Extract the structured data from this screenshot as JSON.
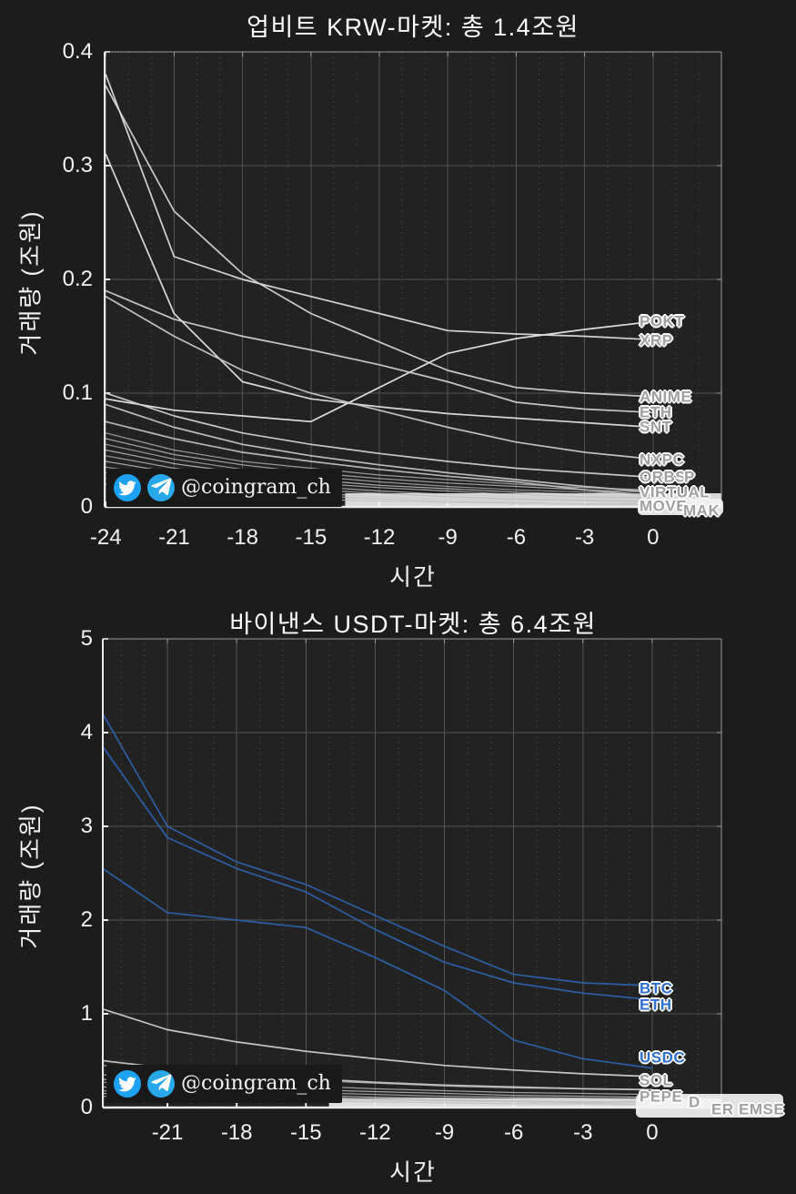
{
  "colors": {
    "background": "#1c1c1c",
    "plot_bg": "#222222",
    "grid": "#545454",
    "grid_minor": "#4f4f4f",
    "spine_bright": "#ebebeb",
    "spine_dim": "#9a9a9a",
    "tick_text": "#f2f2f2",
    "title_text": "#ffffff",
    "blue_line": "#2b63ae",
    "blue_label": "#2e6fd0",
    "grey_label": "#a0a0a0",
    "band": "#f3f3f3",
    "watermark_bg": "#191919",
    "twitter_blue": "#1DA1F2",
    "telegram_blue": "#28A8E8"
  },
  "watermark": {
    "handle": "@coingram_ch"
  },
  "chart_data": [
    {
      "type": "line",
      "title": "업비트 KRW-마켓: 총 1.4조원",
      "xlabel": "시간",
      "ylabel": "거래량 (조원)",
      "xlim": [
        -24.05,
        3
      ],
      "ylim": [
        0,
        0.4
      ],
      "xticks": [
        -24,
        -21,
        -18,
        -15,
        -12,
        -9,
        -6,
        -3,
        0
      ],
      "yticks": [
        0,
        0.1,
        0.2,
        0.3,
        0.4
      ],
      "grid": true,
      "x": [
        -24,
        -21,
        -18,
        -15,
        -12,
        -9,
        -6,
        -3,
        0
      ],
      "series": [
        {
          "name": "POKT",
          "color": "#e8e8e8",
          "values": [
            0.095,
            0.085,
            0.08,
            0.075,
            0.105,
            0.135,
            0.148,
            0.156,
            0.163
          ]
        },
        {
          "name": "XRP",
          "color": "#dddddd",
          "values": [
            0.38,
            0.22,
            0.2,
            0.185,
            0.17,
            0.155,
            0.152,
            0.15,
            0.147
          ]
        },
        {
          "name": "ANIME",
          "color": "#d5d5d5",
          "values": [
            0.37,
            0.26,
            0.205,
            0.17,
            0.145,
            0.12,
            0.105,
            0.1,
            0.097
          ]
        },
        {
          "name": "ETH",
          "color": "#cfcfcf",
          "values": [
            0.19,
            0.165,
            0.15,
            0.138,
            0.125,
            0.11,
            0.092,
            0.086,
            0.083
          ]
        },
        {
          "name": "SNT",
          "color": "#e2e2e2",
          "values": [
            0.31,
            0.17,
            0.11,
            0.095,
            0.088,
            0.082,
            0.078,
            0.074,
            0.07
          ]
        },
        {
          "name": "NXPC",
          "color": "#c8c8c8",
          "values": [
            0.185,
            0.15,
            0.12,
            0.1,
            0.085,
            0.07,
            0.057,
            0.048,
            0.042
          ]
        },
        {
          "name": "ORBS",
          "color": "#d0d0d0",
          "values": [
            0.1,
            0.08,
            0.065,
            0.055,
            0.047,
            0.04,
            0.034,
            0.03,
            0.026
          ]
        },
        {
          "name": "VIRTUAL",
          "color": "#c4c4c4",
          "values": [
            0.09,
            0.07,
            0.055,
            0.045,
            0.037,
            0.03,
            0.024,
            0.018,
            0.013
          ]
        },
        {
          "name": "MOVE",
          "color": "#bdbdbd",
          "values": [
            0.075,
            0.06,
            0.048,
            0.04,
            0.033,
            0.027,
            0.022,
            0.015,
            0.01
          ]
        }
      ],
      "extra_series": [
        {
          "color": "#b8b8b8",
          "values": [
            0.065,
            0.05,
            0.04,
            0.034,
            0.028,
            0.024,
            0.02,
            0.017,
            0.015
          ]
        },
        {
          "color": "#c2c2c2",
          "values": [
            0.06,
            0.046,
            0.037,
            0.03,
            0.025,
            0.021,
            0.018,
            0.015,
            0.013
          ]
        },
        {
          "color": "#b2b2b2",
          "values": [
            0.055,
            0.042,
            0.033,
            0.027,
            0.022,
            0.018,
            0.015,
            0.013,
            0.011
          ]
        },
        {
          "color": "#cccccc",
          "values": [
            0.05,
            0.038,
            0.03,
            0.024,
            0.019,
            0.016,
            0.013,
            0.011,
            0.009
          ]
        },
        {
          "color": "#bbbbbb",
          "values": [
            0.045,
            0.034,
            0.026,
            0.021,
            0.017,
            0.014,
            0.011,
            0.009,
            0.008
          ]
        },
        {
          "color": "#c6c6c6",
          "values": [
            0.04,
            0.03,
            0.023,
            0.018,
            0.014,
            0.011,
            0.009,
            0.008,
            0.007
          ]
        },
        {
          "color": "#b5b5b5",
          "values": [
            0.035,
            0.026,
            0.02,
            0.015,
            0.012,
            0.009,
            0.007,
            0.006,
            0.005
          ]
        },
        {
          "color": "#c9c9c9",
          "values": [
            0.03,
            0.022,
            0.016,
            0.012,
            0.009,
            0.007,
            0.006,
            0.005,
            0.004
          ]
        },
        {
          "color": "#bfbfbf",
          "values": [
            0.025,
            0.018,
            0.013,
            0.01,
            0.007,
            0.005,
            0.004,
            0.003,
            0.003
          ]
        },
        {
          "color": "#c4c4c4",
          "values": [
            0.02,
            0.014,
            0.01,
            0.007,
            0.005,
            0.004,
            0.003,
            0.002,
            0.002
          ]
        }
      ],
      "label_fragments": [
        "P",
        "MAK"
      ]
    },
    {
      "type": "line",
      "title": "바이낸스 USDT-마켓: 총 6.4조원",
      "xlabel": "시간",
      "ylabel": "거래량 (조원)",
      "xlim": [
        -23.8,
        3
      ],
      "ylim": [
        0,
        5
      ],
      "xticks": [
        -21,
        -18,
        -15,
        -12,
        -9,
        -6,
        -3,
        0
      ],
      "yticks": [
        0,
        1,
        2,
        3,
        4,
        5
      ],
      "grid": true,
      "x": [
        -23.8,
        -21,
        -18,
        -15,
        -12,
        -9,
        -6,
        -3,
        0
      ],
      "series": [
        {
          "name": "BTC",
          "color": "#2b63ae",
          "label_style": "blue",
          "values": [
            4.2,
            3.0,
            2.62,
            2.38,
            2.05,
            1.72,
            1.42,
            1.33,
            1.3
          ]
        },
        {
          "name": "ETH",
          "color": "#2b63ae",
          "label_style": "blue",
          "values": [
            3.85,
            2.88,
            2.55,
            2.3,
            1.9,
            1.55,
            1.33,
            1.22,
            1.15
          ]
        },
        {
          "name": "USDC",
          "color": "#2b63ae",
          "label_style": "blue",
          "values": [
            2.55,
            2.08,
            2.0,
            1.92,
            1.6,
            1.25,
            0.72,
            0.52,
            0.42
          ]
        },
        {
          "name": "SOL",
          "color": "#cfcfcf",
          "label_style": "grey",
          "values": [
            1.05,
            0.83,
            0.7,
            0.6,
            0.52,
            0.45,
            0.4,
            0.36,
            0.33
          ]
        },
        {
          "name": "PEPE",
          "color": "#c6c6c6",
          "label_style": "grey",
          "values": [
            0.5,
            0.42,
            0.36,
            0.31,
            0.27,
            0.24,
            0.22,
            0.2,
            0.19
          ]
        }
      ],
      "extra_series": [
        {
          "color": "#c9c9c9",
          "values": [
            0.45,
            0.38,
            0.33,
            0.29,
            0.26,
            0.23,
            0.21,
            0.2,
            0.19
          ]
        },
        {
          "color": "#bdbdbd",
          "values": [
            0.35,
            0.3,
            0.26,
            0.23,
            0.2,
            0.18,
            0.16,
            0.15,
            0.14
          ]
        },
        {
          "color": "#c4c4c4",
          "values": [
            0.3,
            0.26,
            0.22,
            0.19,
            0.17,
            0.15,
            0.13,
            0.12,
            0.11
          ]
        },
        {
          "color": "#b8b8b8",
          "values": [
            0.27,
            0.23,
            0.19,
            0.16,
            0.14,
            0.12,
            0.11,
            0.1,
            0.09
          ]
        },
        {
          "color": "#cfcfcf",
          "values": [
            0.22,
            0.19,
            0.16,
            0.13,
            0.11,
            0.1,
            0.09,
            0.08,
            0.07
          ]
        },
        {
          "color": "#b2b2b2",
          "values": [
            0.18,
            0.15,
            0.13,
            0.11,
            0.09,
            0.08,
            0.07,
            0.06,
            0.06
          ]
        },
        {
          "color": "#c2c2c2",
          "values": [
            0.15,
            0.12,
            0.1,
            0.09,
            0.08,
            0.07,
            0.06,
            0.05,
            0.05
          ]
        },
        {
          "color": "#bbbbbb",
          "values": [
            0.12,
            0.1,
            0.08,
            0.07,
            0.06,
            0.05,
            0.04,
            0.04,
            0.03
          ]
        }
      ],
      "label_fragments": [
        "D",
        "ER",
        "EMSE"
      ]
    }
  ]
}
